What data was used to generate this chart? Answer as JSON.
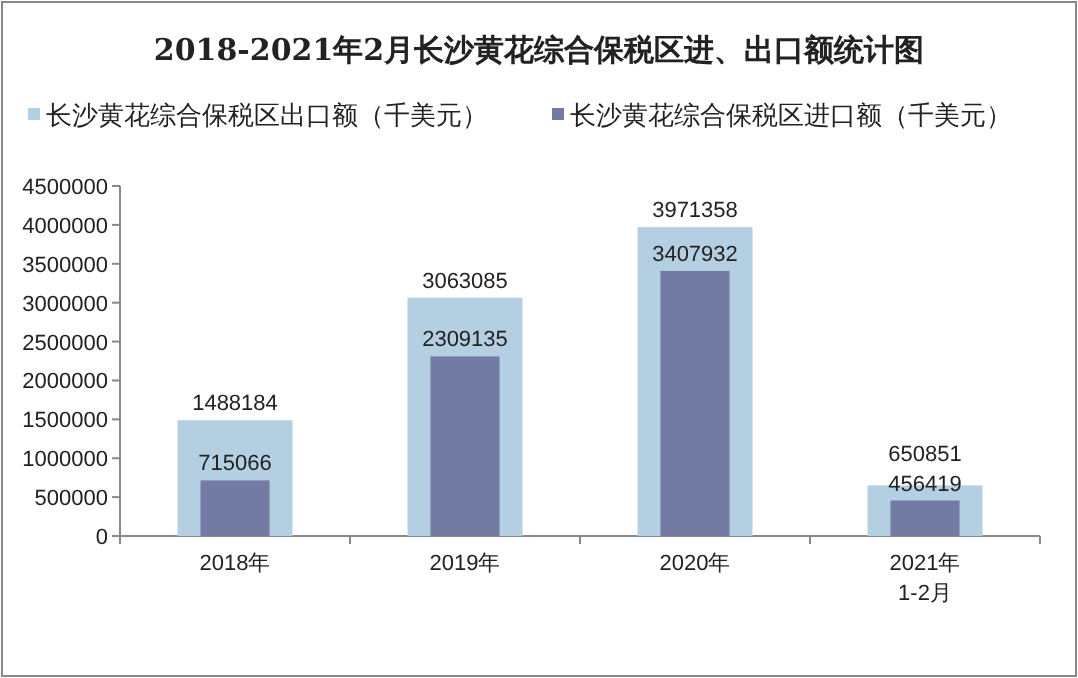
{
  "chart_data": {
    "type": "bar",
    "title": "2018-2021年2月长沙黄花综合保税区进、出口额统计图",
    "categories": [
      "2018年",
      "2019年",
      "2020年",
      "2021年\n1-2月"
    ],
    "series": [
      {
        "name": "长沙黄花综合保税区出口额（千美元）",
        "color": "#b4cfe2",
        "values": [
          1488184,
          3063085,
          3971358,
          650851
        ]
      },
      {
        "name": "长沙黄花综合保税区进口额（千美元）",
        "color": "#737ba3",
        "values": [
          715066,
          2309135,
          3407932,
          456419
        ]
      }
    ],
    "ylim": [
      0,
      4500000
    ],
    "yticks": [
      0,
      500000,
      1000000,
      1500000,
      2000000,
      2500000,
      3000000,
      3500000,
      4000000,
      4500000
    ],
    "data_labels": true,
    "legend": "top left"
  }
}
